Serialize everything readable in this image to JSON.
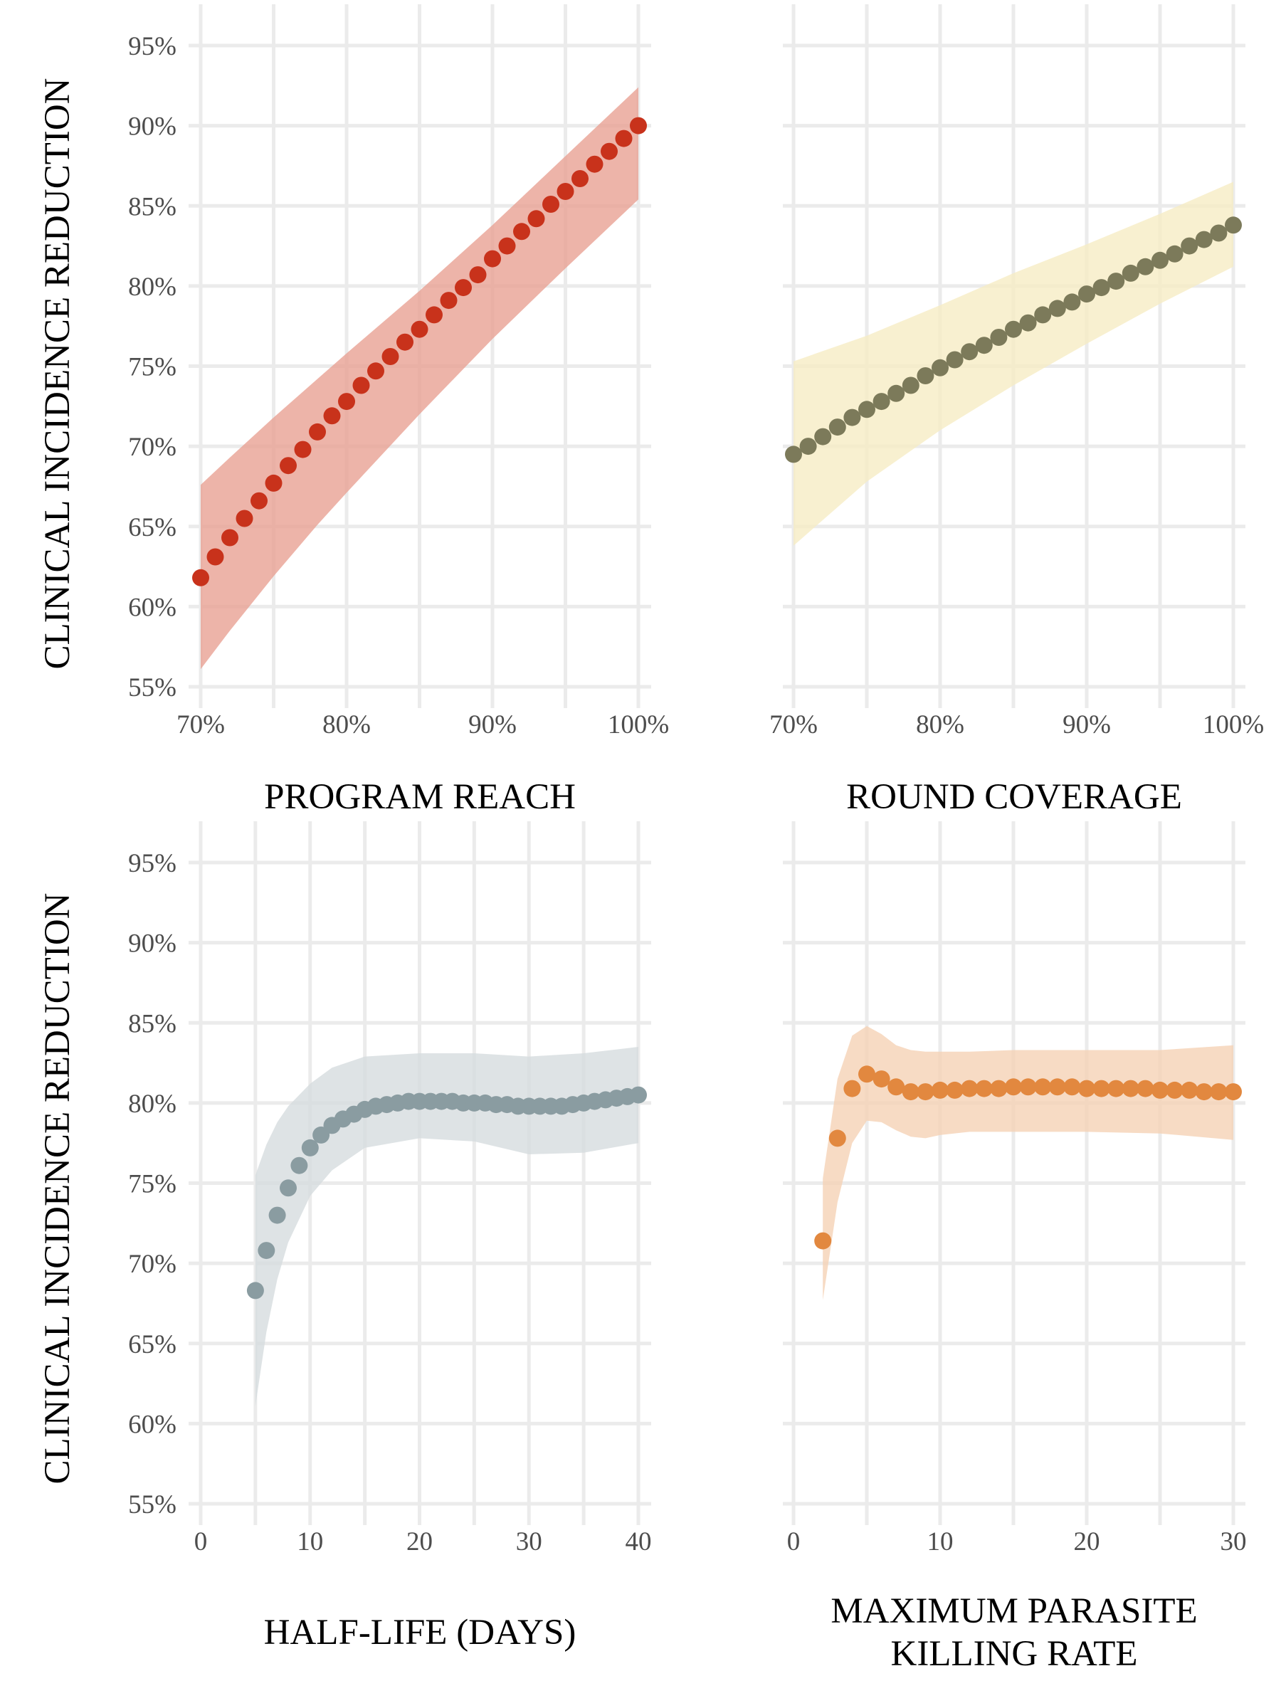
{
  "y_axis_label": "CLINICAL  INCIDENCE  REDUCTION",
  "y_ticks": [
    0.55,
    0.6,
    0.65,
    0.7,
    0.75,
    0.8,
    0.85,
    0.9,
    0.95
  ],
  "y_tick_labels": [
    "55%",
    "60%",
    "65%",
    "70%",
    "75%",
    "80%",
    "85%",
    "90%",
    "95%"
  ],
  "ylim": [
    0.55,
    0.95
  ],
  "chart_data": [
    {
      "type": "scatter",
      "name": "program-reach",
      "xlabel": [
        "PROGRAM  REACH"
      ],
      "xlim": [
        0.7,
        1.0
      ],
      "x_ticks": [
        0.7,
        0.8,
        0.9,
        1.0
      ],
      "x_tick_labels": [
        "70%",
        "80%",
        "90%",
        "100%"
      ],
      "point_color": "#c8321b",
      "band_color": "#e8a193",
      "x": [
        0.7,
        0.71,
        0.72,
        0.73,
        0.74,
        0.75,
        0.76,
        0.77,
        0.78,
        0.79,
        0.8,
        0.81,
        0.82,
        0.83,
        0.84,
        0.85,
        0.86,
        0.87,
        0.88,
        0.89,
        0.9,
        0.91,
        0.92,
        0.93,
        0.94,
        0.95,
        0.96,
        0.97,
        0.98,
        0.99,
        1.0
      ],
      "y": [
        0.618,
        0.631,
        0.643,
        0.655,
        0.666,
        0.677,
        0.688,
        0.698,
        0.709,
        0.719,
        0.728,
        0.738,
        0.747,
        0.756,
        0.765,
        0.773,
        0.782,
        0.791,
        0.799,
        0.807,
        0.817,
        0.825,
        0.834,
        0.842,
        0.851,
        0.859,
        0.867,
        0.876,
        0.884,
        0.892,
        0.9
      ],
      "band_x": [
        0.7,
        0.72,
        0.75,
        0.78,
        0.8,
        0.85,
        0.9,
        0.95,
        1.0
      ],
      "band_lower": [
        0.561,
        0.585,
        0.619,
        0.651,
        0.671,
        0.72,
        0.767,
        0.811,
        0.854
      ],
      "band_upper": [
        0.676,
        0.693,
        0.718,
        0.742,
        0.758,
        0.797,
        0.838,
        0.881,
        0.924
      ]
    },
    {
      "type": "scatter",
      "name": "round-coverage",
      "xlabel": [
        "ROUND  COVERAGE"
      ],
      "xlim": [
        0.7,
        1.0
      ],
      "x_ticks": [
        0.7,
        0.8,
        0.9,
        1.0
      ],
      "x_tick_labels": [
        "70%",
        "80%",
        "90%",
        "100%"
      ],
      "point_color": "#7c7a5a",
      "band_color": "#f6ecc4",
      "x": [
        0.7,
        0.71,
        0.72,
        0.73,
        0.74,
        0.75,
        0.76,
        0.77,
        0.78,
        0.79,
        0.8,
        0.81,
        0.82,
        0.83,
        0.84,
        0.85,
        0.86,
        0.87,
        0.88,
        0.89,
        0.9,
        0.91,
        0.92,
        0.93,
        0.94,
        0.95,
        0.96,
        0.97,
        0.98,
        0.99,
        1.0
      ],
      "y": [
        0.695,
        0.7,
        0.706,
        0.712,
        0.718,
        0.723,
        0.728,
        0.733,
        0.738,
        0.744,
        0.749,
        0.754,
        0.759,
        0.763,
        0.768,
        0.773,
        0.777,
        0.782,
        0.786,
        0.79,
        0.795,
        0.799,
        0.803,
        0.808,
        0.812,
        0.816,
        0.82,
        0.825,
        0.829,
        0.833,
        0.838
      ],
      "band_x": [
        0.7,
        0.75,
        0.8,
        0.85,
        0.9,
        0.95,
        1.0
      ],
      "band_lower": [
        0.638,
        0.678,
        0.71,
        0.738,
        0.764,
        0.789,
        0.812
      ],
      "band_upper": [
        0.753,
        0.769,
        0.788,
        0.808,
        0.826,
        0.845,
        0.865
      ]
    },
    {
      "type": "scatter",
      "name": "half-life",
      "xlabel": [
        "HALF-LIFE  (DAYS)"
      ],
      "xlim": [
        0,
        40
      ],
      "x_ticks": [
        0,
        10,
        20,
        30,
        40
      ],
      "x_tick_labels": [
        "0",
        "10",
        "20",
        "30",
        "40"
      ],
      "point_color": "#8a9ca1",
      "band_color": "#d6dcde",
      "x": [
        5,
        6,
        7,
        8,
        9,
        10,
        11,
        12,
        13,
        14,
        15,
        16,
        17,
        18,
        19,
        20,
        21,
        22,
        23,
        24,
        25,
        26,
        27,
        28,
        29,
        30,
        31,
        32,
        33,
        34,
        35,
        36,
        37,
        38,
        39,
        40
      ],
      "y": [
        0.683,
        0.708,
        0.73,
        0.747,
        0.761,
        0.772,
        0.78,
        0.786,
        0.79,
        0.793,
        0.796,
        0.798,
        0.799,
        0.8,
        0.801,
        0.801,
        0.801,
        0.801,
        0.801,
        0.8,
        0.8,
        0.8,
        0.799,
        0.799,
        0.798,
        0.798,
        0.798,
        0.798,
        0.798,
        0.799,
        0.8,
        0.801,
        0.802,
        0.803,
        0.804,
        0.805
      ],
      "band_x": [
        5,
        6,
        7,
        8,
        10,
        12,
        15,
        20,
        25,
        30,
        35,
        40
      ],
      "band_lower": [
        0.611,
        0.657,
        0.69,
        0.713,
        0.742,
        0.758,
        0.772,
        0.778,
        0.776,
        0.768,
        0.769,
        0.775
      ],
      "band_upper": [
        0.755,
        0.774,
        0.788,
        0.798,
        0.812,
        0.822,
        0.829,
        0.831,
        0.831,
        0.829,
        0.831,
        0.835
      ]
    },
    {
      "type": "scatter",
      "name": "maximum-parasite-killing-rate",
      "xlabel": [
        "MAXIMUM  PARASITE",
        "KILLING  RATE"
      ],
      "xlim": [
        0,
        30
      ],
      "x_ticks": [
        0,
        10,
        20,
        30
      ],
      "x_tick_labels": [
        "0",
        "10",
        "20",
        "30"
      ],
      "point_color": "#e2883f",
      "band_color": "#f5d2b5",
      "x": [
        2,
        3,
        4,
        5,
        6,
        7,
        8,
        9,
        10,
        11,
        12,
        13,
        14,
        15,
        16,
        17,
        18,
        19,
        20,
        21,
        22,
        23,
        24,
        25,
        26,
        27,
        28,
        29,
        30
      ],
      "y": [
        0.714,
        0.778,
        0.809,
        0.818,
        0.815,
        0.81,
        0.807,
        0.807,
        0.808,
        0.808,
        0.809,
        0.809,
        0.809,
        0.81,
        0.81,
        0.81,
        0.81,
        0.81,
        0.809,
        0.809,
        0.809,
        0.809,
        0.809,
        0.808,
        0.808,
        0.808,
        0.807,
        0.807,
        0.807
      ],
      "band_x": [
        2,
        3,
        4,
        5,
        6,
        7,
        8,
        9,
        10,
        12,
        15,
        20,
        25,
        30
      ],
      "band_lower": [
        0.677,
        0.738,
        0.775,
        0.789,
        0.788,
        0.783,
        0.779,
        0.778,
        0.78,
        0.782,
        0.782,
        0.782,
        0.781,
        0.777
      ],
      "band_upper": [
        0.753,
        0.815,
        0.842,
        0.848,
        0.843,
        0.836,
        0.833,
        0.832,
        0.832,
        0.832,
        0.833,
        0.833,
        0.833,
        0.836
      ]
    }
  ]
}
